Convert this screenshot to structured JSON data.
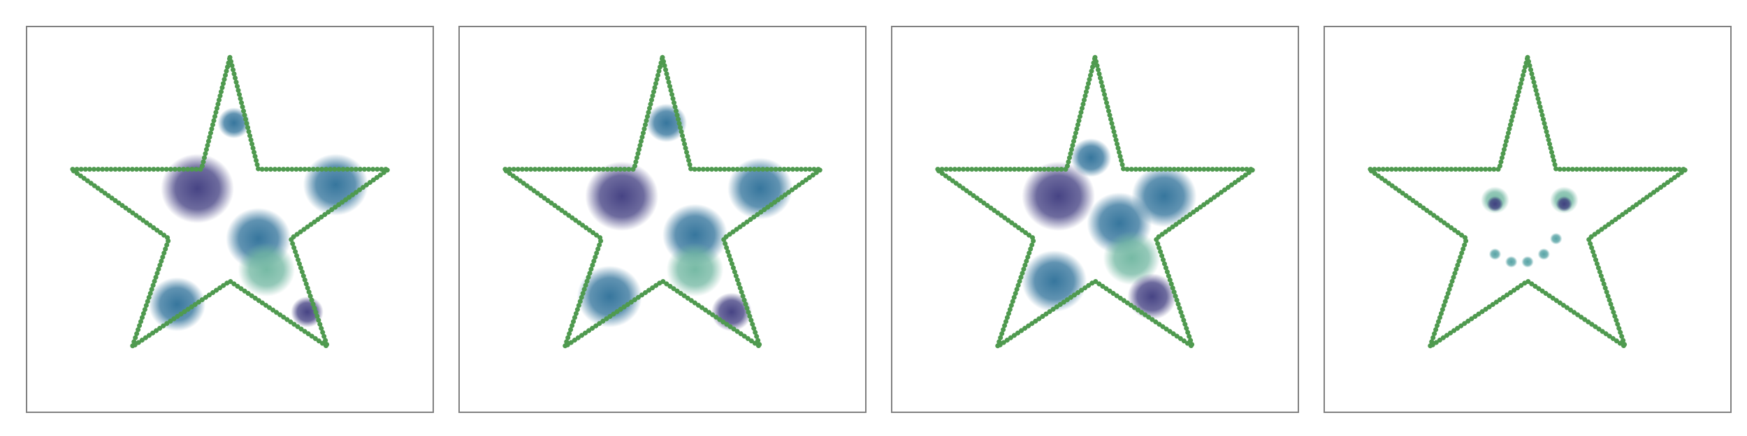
{
  "chart_data": [
    {
      "type": "scatter",
      "xlim": [
        0,
        1
      ],
      "ylim": [
        0,
        1
      ],
      "outline": {
        "color": "#4f9a4f",
        "x": [
          0.5,
          0.57,
          0.89,
          0.65,
          0.74,
          0.5,
          0.26,
          0.35,
          0.11,
          0.43,
          0.5
        ],
        "y": [
          0.92,
          0.63,
          0.63,
          0.45,
          0.17,
          0.34,
          0.17,
          0.45,
          0.63,
          0.63,
          0.92
        ]
      },
      "clusters": {
        "x": [
          0.76,
          0.57,
          0.51,
          0.37,
          0.59,
          0.69,
          0.42
        ],
        "y": [
          0.59,
          0.45,
          0.75,
          0.28,
          0.37,
          0.26,
          0.58
        ],
        "size": [
          0.08,
          0.08,
          0.04,
          0.07,
          0.07,
          0.04,
          0.09
        ],
        "color": [
          "#2c6f98",
          "#2c6f98",
          "#2c6f98",
          "#2c6f98",
          "#6fb6a0",
          "#3d3a7e",
          "#3d3a7e"
        ]
      }
    },
    {
      "type": "scatter",
      "xlim": [
        0,
        1
      ],
      "ylim": [
        0,
        1
      ],
      "outline": {
        "color": "#4f9a4f",
        "x": [
          0.5,
          0.57,
          0.89,
          0.65,
          0.74,
          0.5,
          0.26,
          0.35,
          0.11,
          0.43,
          0.5
        ],
        "y": [
          0.92,
          0.63,
          0.63,
          0.45,
          0.17,
          0.34,
          0.17,
          0.45,
          0.63,
          0.63,
          0.92
        ]
      },
      "clusters": {
        "x": [
          0.74,
          0.58,
          0.51,
          0.37,
          0.58,
          0.67,
          0.4
        ],
        "y": [
          0.58,
          0.46,
          0.75,
          0.3,
          0.37,
          0.26,
          0.56
        ],
        "size": [
          0.08,
          0.08,
          0.05,
          0.08,
          0.07,
          0.05,
          0.09
        ],
        "color": [
          "#2c6f98",
          "#2c6f98",
          "#2c6f98",
          "#2c6f98",
          "#6fb6a0",
          "#3d3a7e",
          "#3d3a7e"
        ]
      }
    },
    {
      "type": "scatter",
      "xlim": [
        0,
        1
      ],
      "ylim": [
        0,
        1
      ],
      "outline": {
        "color": "#4f9a4f",
        "x": [
          0.5,
          0.57,
          0.89,
          0.65,
          0.74,
          0.5,
          0.26,
          0.35,
          0.11,
          0.43,
          0.5
        ],
        "y": [
          0.92,
          0.63,
          0.63,
          0.45,
          0.17,
          0.34,
          0.17,
          0.45,
          0.63,
          0.63,
          0.92
        ]
      },
      "clusters": {
        "x": [
          0.67,
          0.56,
          0.49,
          0.4,
          0.59,
          0.64,
          0.41
        ],
        "y": [
          0.56,
          0.49,
          0.66,
          0.34,
          0.4,
          0.3,
          0.56
        ],
        "size": [
          0.08,
          0.08,
          0.05,
          0.08,
          0.07,
          0.06,
          0.09
        ],
        "color": [
          "#2c6f98",
          "#2c6f98",
          "#2c6f98",
          "#2c6f98",
          "#6fb6a0",
          "#3d3a7e",
          "#3d3a7e"
        ]
      }
    },
    {
      "type": "scatter",
      "xlim": [
        0,
        1
      ],
      "ylim": [
        0,
        1
      ],
      "outline": {
        "color": "#4f9a4f",
        "x": [
          0.5,
          0.57,
          0.89,
          0.65,
          0.74,
          0.5,
          0.26,
          0.35,
          0.11,
          0.43,
          0.5
        ],
        "y": [
          0.92,
          0.63,
          0.63,
          0.45,
          0.17,
          0.34,
          0.17,
          0.45,
          0.63,
          0.63,
          0.92
        ]
      },
      "clusters": {
        "x": [
          0.42,
          0.59,
          0.42,
          0.59,
          0.42,
          0.46,
          0.5,
          0.54,
          0.57
        ],
        "y": [
          0.55,
          0.55,
          0.54,
          0.54,
          0.41,
          0.39,
          0.39,
          0.41,
          0.45
        ],
        "size": [
          0.035,
          0.035,
          0.02,
          0.02,
          0.015,
          0.015,
          0.015,
          0.015,
          0.015
        ],
        "color": [
          "#6fb6a0",
          "#6fb6a0",
          "#3d3a7e",
          "#3d3a7e",
          "#4e9ea0",
          "#4e9ea0",
          "#4e9ea0",
          "#4e9ea0",
          "#4e9ea0"
        ]
      }
    }
  ]
}
